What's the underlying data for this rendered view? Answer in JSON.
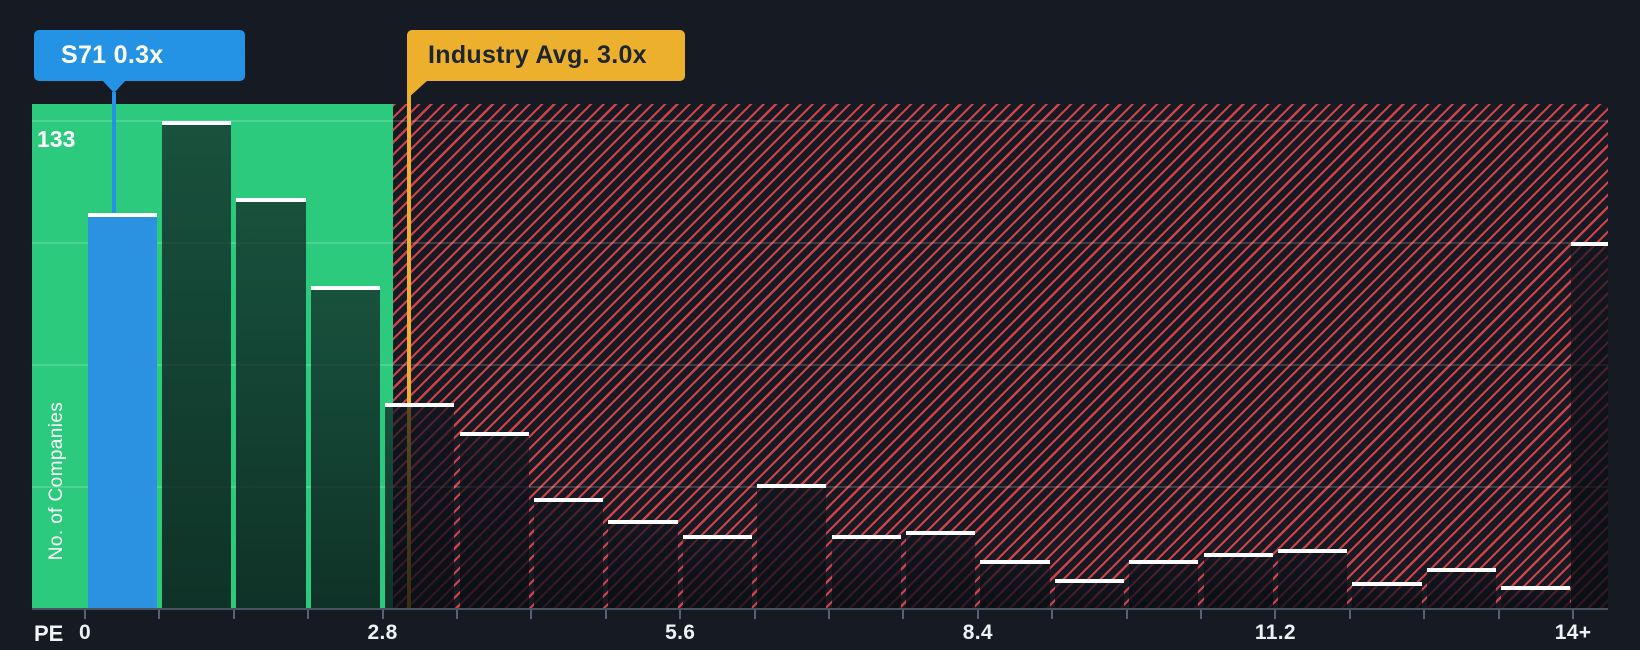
{
  "chart_data": {
    "type": "bar",
    "subtype": "histogram",
    "title": "",
    "xlabel": "PE",
    "ylabel": "No. of Companies",
    "x_tick_labels": [
      "0",
      "2.8",
      "5.6",
      "8.4",
      "11.2",
      "14+"
    ],
    "y_max_label": "133",
    "ylim": [
      0,
      133
    ],
    "xlim": [
      0,
      14
    ],
    "bin_width": 0.7,
    "grid": "horizontal-faint",
    "legend_position": "none",
    "bins": [
      {
        "range": "0-0.7",
        "count": 108,
        "is_company": true
      },
      {
        "range": "0.7-1.4",
        "count": 133,
        "is_company": false
      },
      {
        "range": "1.4-2.1",
        "count": 112,
        "is_company": false
      },
      {
        "range": "2.1-2.8",
        "count": 88,
        "is_company": false
      },
      {
        "range": "2.8-3.5",
        "count": 56,
        "is_company": false
      },
      {
        "range": "3.5-4.2",
        "count": 48,
        "is_company": false
      },
      {
        "range": "4.2-4.9",
        "count": 30,
        "is_company": false
      },
      {
        "range": "4.9-5.6",
        "count": 24,
        "is_company": false
      },
      {
        "range": "5.6-6.3",
        "count": 20,
        "is_company": false
      },
      {
        "range": "6.3-7.0",
        "count": 34,
        "is_company": false
      },
      {
        "range": "7.0-7.7",
        "count": 20,
        "is_company": false
      },
      {
        "range": "7.7-8.4",
        "count": 21,
        "is_company": false
      },
      {
        "range": "8.4-9.1",
        "count": 13,
        "is_company": false
      },
      {
        "range": "9.1-9.8",
        "count": 8,
        "is_company": false
      },
      {
        "range": "9.8-10.5",
        "count": 13,
        "is_company": false
      },
      {
        "range": "10.5-11.2",
        "count": 15,
        "is_company": false
      },
      {
        "range": "11.2-11.9",
        "count": 16,
        "is_company": false
      },
      {
        "range": "11.9-12.6",
        "count": 7,
        "is_company": false
      },
      {
        "range": "12.6-13.3",
        "count": 11,
        "is_company": false
      },
      {
        "range": "13.3-14",
        "count": 6,
        "is_company": false
      },
      {
        "range": "14+",
        "count": 100,
        "is_company": false
      }
    ],
    "company_marker": {
      "label": "S71 0.3x",
      "value": 0.3
    },
    "industry_average": {
      "label": "Industry Avg. 3.0x",
      "value": 3.0
    },
    "zones": {
      "below_average": {
        "description": "green zone 0 to ~2.9",
        "color": "#2BCA7C"
      },
      "above_average": {
        "description": "red hatched zone ~2.9 to 14+",
        "hatch_color": "#F0484F"
      }
    }
  },
  "colors": {
    "background": "#151A23",
    "company_accent": "#2493E6",
    "industry_accent": "#ECB02D",
    "zone_green": "#2BCA7C",
    "hatch_red": "#F0484F",
    "bar_cap": "#FFFFFF",
    "axis_text": "#EDF0F5"
  },
  "icons": {
    "company_pointer": "triangle-down",
    "industry_pointer": "triangle-down-left"
  }
}
